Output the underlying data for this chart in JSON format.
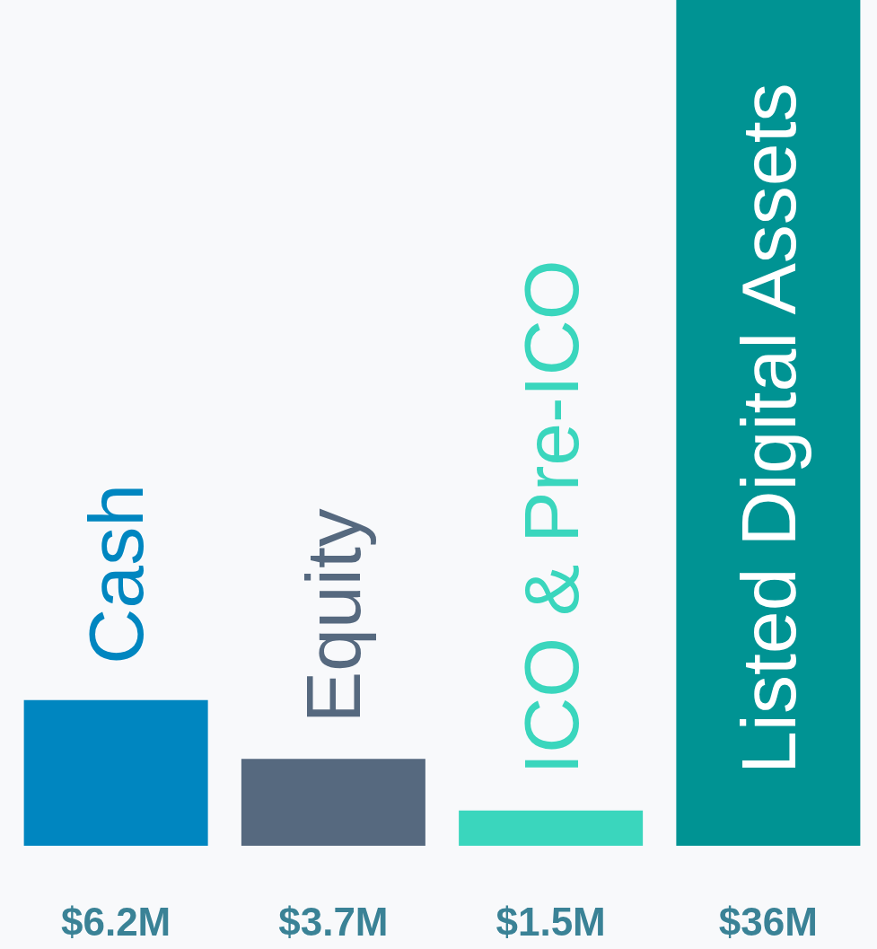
{
  "chart_data": {
    "type": "bar",
    "categories": [
      "Cash",
      "Equity",
      "ICO & Pre-ICO",
      "Listed Digital Assets"
    ],
    "values": [
      6.2,
      3.7,
      1.5,
      36
    ],
    "colors": [
      "#0086c0",
      "#56697f",
      "#3ad6bd",
      "#009393"
    ],
    "value_labels": [
      "$6.2M",
      "$3.7M",
      "$1.5M",
      "$36M"
    ]
  }
}
